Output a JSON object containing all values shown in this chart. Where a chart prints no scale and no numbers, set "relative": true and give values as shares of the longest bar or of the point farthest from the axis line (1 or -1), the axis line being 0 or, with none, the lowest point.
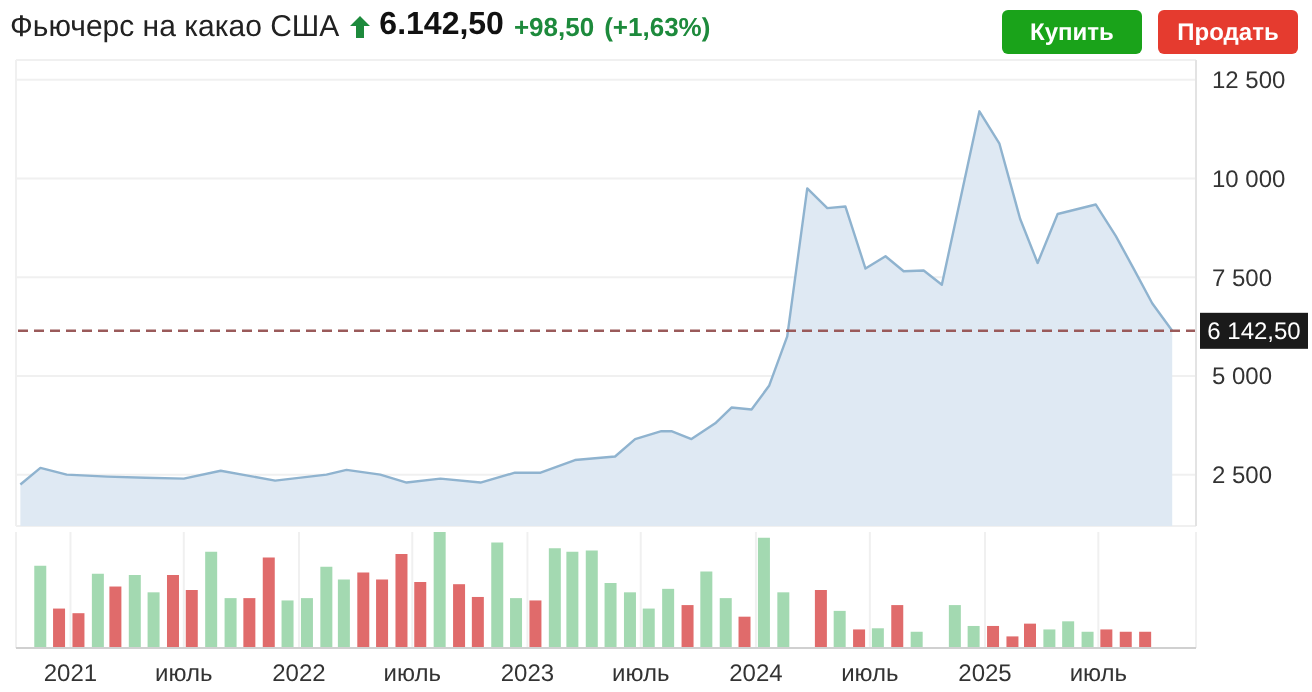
{
  "chart_data": [
    {
      "type": "area",
      "title": "Фьючерс на какао США",
      "annotations": [
        "6.142,50",
        "+98,50",
        "(+1,63%)",
        "Купить",
        "Продать"
      ],
      "x": [
        "2020-10-13",
        "2020-11-14",
        "2020-12-26",
        "2021-03-01",
        "2021-05-01",
        "2021-07-01",
        "2021-08-29",
        "2021-11-24",
        "2022-02-14",
        "2022-03-18",
        "2022-05-11",
        "2022-06-22",
        "2022-08-15",
        "2022-10-18",
        "2022-12-12",
        "2023-01-22",
        "2023-03-18",
        "2023-05-21",
        "2023-06-22",
        "2023-08-03",
        "2023-08-19",
        "2023-09-20",
        "2023-10-28",
        "2023-11-23",
        "2023-12-25",
        "2024-01-22",
        "2024-02-20",
        "2024-03-23",
        "2024-04-24",
        "2024-05-23",
        "2024-06-24",
        "2024-07-26",
        "2024-08-24",
        "2024-09-25",
        "2024-10-24",
        "2024-12-23",
        "2025-01-24",
        "2025-02-26",
        "2025-03-26",
        "2025-04-27",
        "2025-06-27",
        "2025-07-29",
        "2025-08-27",
        "2025-09-25",
        "2025-10-27"
      ],
      "series": [
        {
          "color": "#8fb3cf",
          "values": [
            2250,
            2670,
            2500,
            2450,
            2420,
            2400,
            2600,
            2350,
            2500,
            2620,
            2500,
            2300,
            2400,
            2300,
            2550,
            2550,
            2870,
            2960,
            3400,
            3600,
            3600,
            3400,
            3800,
            4200,
            4150,
            4750,
            6000,
            9750,
            9250,
            9290,
            7720,
            8030,
            7650,
            7670,
            7310,
            11700,
            10880,
            8980,
            7860,
            9100,
            9340,
            8540,
            7700,
            6840,
            6142.5
          ]
        }
      ],
      "xlim": [
        "2020-10-06",
        "2025-12-04"
      ],
      "xticks": [
        {
          "value": "2021-01-01",
          "label": null
        },
        {
          "value": "2021-07-01",
          "label": null
        },
        {
          "value": "2022-01-01",
          "label": null
        },
        {
          "value": "2022-07-01",
          "label": null
        },
        {
          "value": "2023-01-01",
          "label": null
        },
        {
          "value": "2023-07-01",
          "label": null
        },
        {
          "value": "2024-01-01",
          "label": null
        },
        {
          "value": "2024-07-01",
          "label": null
        },
        {
          "value": "2025-01-01",
          "label": null
        },
        {
          "value": "2025-07-01",
          "label": null
        }
      ],
      "ylim": [
        1200,
        13000
      ],
      "yticks": [
        {
          "value": 2500,
          "label": "2 500"
        },
        {
          "value": 5000,
          "label": "5 000"
        },
        {
          "value": 7500,
          "label": "7 500"
        },
        {
          "value": 10000,
          "label": "10 000"
        },
        {
          "value": 12500,
          "label": "12 500"
        }
      ],
      "ref_lines": [
        {
          "axis": "y",
          "value": 6142.5,
          "label": "6 142,50",
          "color": "#9a5a5a",
          "line_style": "dashed"
        }
      ],
      "grid": true,
      "tick_labels": "y"
    },
    {
      "type": "bar",
      "relative": true,
      "x": [
        "2020-11-15",
        "2020-12-15",
        "2021-01-15",
        "2021-02-15",
        "2021-03-15",
        "2021-04-15",
        "2021-05-15",
        "2021-06-15",
        "2021-07-15",
        "2021-08-15",
        "2021-09-15",
        "2021-10-15",
        "2021-11-15",
        "2021-12-15",
        "2022-01-15",
        "2022-02-15",
        "2022-03-15",
        "2022-04-15",
        "2022-05-15",
        "2022-06-15",
        "2022-07-15",
        "2022-08-15",
        "2022-09-15",
        "2022-10-15",
        "2022-11-15",
        "2022-12-15",
        "2023-01-15",
        "2023-02-15",
        "2023-03-15",
        "2023-04-15",
        "2023-05-15",
        "2023-06-15",
        "2023-07-15",
        "2023-08-15",
        "2023-09-15",
        "2023-10-15",
        "2023-11-15",
        "2023-12-15",
        "2024-01-15",
        "2024-02-15",
        "2024-03-15",
        "2024-04-15",
        "2024-05-15",
        "2024-06-15",
        "2024-07-15",
        "2024-08-15",
        "2024-09-15",
        "2024-10-15",
        "2024-11-15",
        "2024-12-15",
        "2025-01-15",
        "2025-02-15",
        "2025-03-15",
        "2025-04-15",
        "2025-05-15",
        "2025-06-15",
        "2025-07-15",
        "2025-08-15",
        "2025-09-15"
      ],
      "values": [
        0.71,
        0.34,
        0.3,
        0.64,
        0.53,
        0.63,
        0.48,
        0.63,
        0.5,
        0.83,
        0.43,
        0.43,
        0.78,
        0.41,
        0.43,
        0.7,
        0.59,
        0.65,
        0.59,
        0.81,
        0.57,
        1,
        0.55,
        0.44,
        0.91,
        0.43,
        0.41,
        0.86,
        0.83,
        0.84,
        0.56,
        0.48,
        0.34,
        0.51,
        0.37,
        0.66,
        0.43,
        0.27,
        0.95,
        0.48,
        null,
        0.5,
        0.32,
        0.16,
        0.17,
        0.37,
        0.14,
        null,
        0.37,
        0.19,
        0.19,
        0.1,
        0.21,
        0.16,
        0.23,
        0.14,
        0.16,
        0.14,
        0.14
      ],
      "colors": [
        "#a3d9b1",
        "#e06b6b",
        "#e06b6b",
        "#a3d9b1",
        "#e06b6b",
        "#a3d9b1",
        "#a3d9b1",
        "#e06b6b",
        "#e06b6b",
        "#a3d9b1",
        "#a3d9b1",
        "#e06b6b",
        "#e06b6b",
        "#a3d9b1",
        "#a3d9b1",
        "#a3d9b1",
        "#a3d9b1",
        "#e06b6b",
        "#e06b6b",
        "#e06b6b",
        "#e06b6b",
        "#a3d9b1",
        "#e06b6b",
        "#e06b6b",
        "#a3d9b1",
        "#a3d9b1",
        "#e06b6b",
        "#a3d9b1",
        "#a3d9b1",
        "#a3d9b1",
        "#a3d9b1",
        "#a3d9b1",
        "#a3d9b1",
        "#a3d9b1",
        "#e06b6b",
        "#a3d9b1",
        "#a3d9b1",
        "#e06b6b",
        "#a3d9b1",
        "#a3d9b1",
        "#a3d9b1",
        "#e06b6b",
        "#a3d9b1",
        "#e06b6b",
        "#a3d9b1",
        "#e06b6b",
        "#a3d9b1",
        "#a3d9b1",
        "#a3d9b1",
        "#a3d9b1",
        "#e06b6b",
        "#e06b6b",
        "#e06b6b",
        "#a3d9b1",
        "#a3d9b1",
        "#a3d9b1",
        "#e06b6b",
        "#e06b6b",
        "#e06b6b"
      ],
      "xlim": [
        "2020-10-06",
        "2025-12-04"
      ],
      "xticks": [
        {
          "value": "2021-01-01",
          "label": "2021"
        },
        {
          "value": "2021-07-01",
          "label": "июль"
        },
        {
          "value": "2022-01-01",
          "label": "2022"
        },
        {
          "value": "2022-07-01",
          "label": "июль"
        },
        {
          "value": "2023-01-01",
          "label": "2023"
        },
        {
          "value": "2023-07-01",
          "label": "июль"
        },
        {
          "value": "2024-01-01",
          "label": "2024"
        },
        {
          "value": "2024-07-01",
          "label": "июль"
        },
        {
          "value": "2025-01-01",
          "label": "2025"
        },
        {
          "value": "2025-07-01",
          "label": "июль"
        }
      ],
      "grid": "x",
      "tick_labels": "x"
    }
  ]
}
